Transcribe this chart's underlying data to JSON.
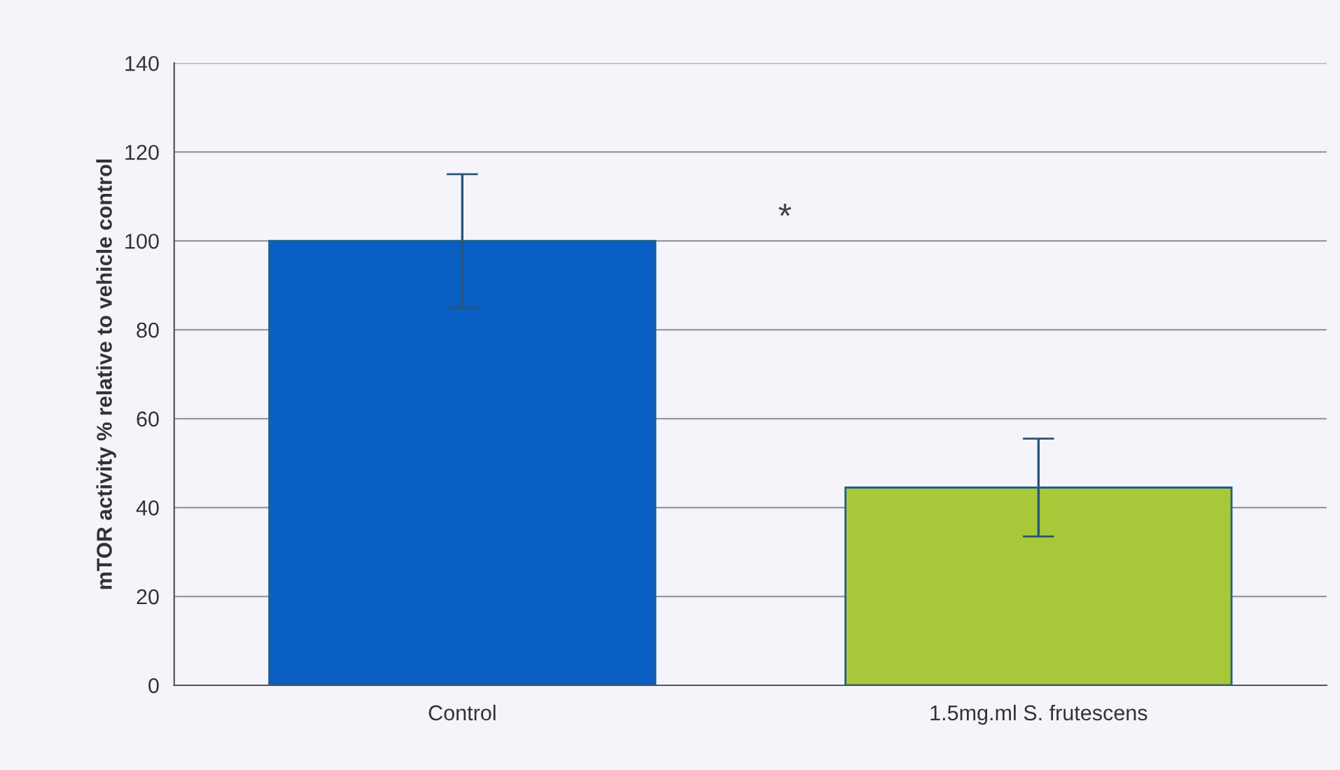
{
  "chart_data": {
    "type": "bar",
    "ylabel": "mTOR activity % relative to vehicle control",
    "categories": [
      "Control",
      "1.5mg.ml S. frutescens"
    ],
    "values": [
      100,
      44.5
    ],
    "errors": [
      15,
      11
    ],
    "colors": [
      "#0a5fc4",
      "#a8c83a"
    ],
    "ylim": [
      0,
      140
    ],
    "yticks": [
      0,
      20,
      40,
      60,
      80,
      100,
      120,
      140
    ],
    "grid": "y",
    "annotations": [
      "*"
    ]
  }
}
